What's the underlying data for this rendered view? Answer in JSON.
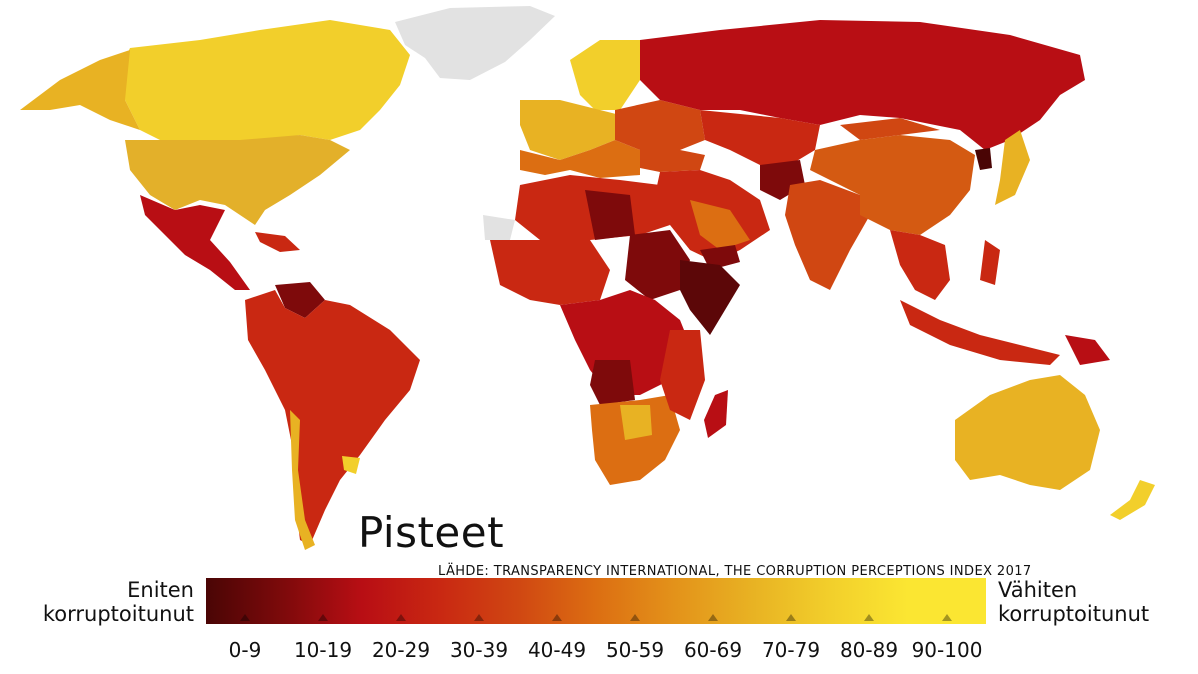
{
  "title": "Pisteet",
  "source": "LÄHDE: TRANSPARENCY INTERNATIONAL, THE CORRUPTION PERCEPTIONS INDEX 2017",
  "legend": {
    "left_label_line1": "Eniten",
    "left_label_line2": "korruptoitunut",
    "right_label_line1": "Vähiten",
    "right_label_line2": "korruptoitunut",
    "bins": [
      {
        "label": "0-9",
        "color": "#4a0505"
      },
      {
        "label": "10-19",
        "color": "#7e0a0b"
      },
      {
        "label": "20-29",
        "color": "#b80e14"
      },
      {
        "label": "30-39",
        "color": "#c92812"
      },
      {
        "label": "40-49",
        "color": "#d04712"
      },
      {
        "label": "50-59",
        "color": "#dc6e12"
      },
      {
        "label": "60-69",
        "color": "#e3921a"
      },
      {
        "label": "70-79",
        "color": "#e8b223"
      },
      {
        "label": "80-89",
        "color": "#f2cf2b"
      },
      {
        "label": "90-100",
        "color": "#fbe632"
      }
    ]
  },
  "no_data_color": "#e2e2e2"
}
